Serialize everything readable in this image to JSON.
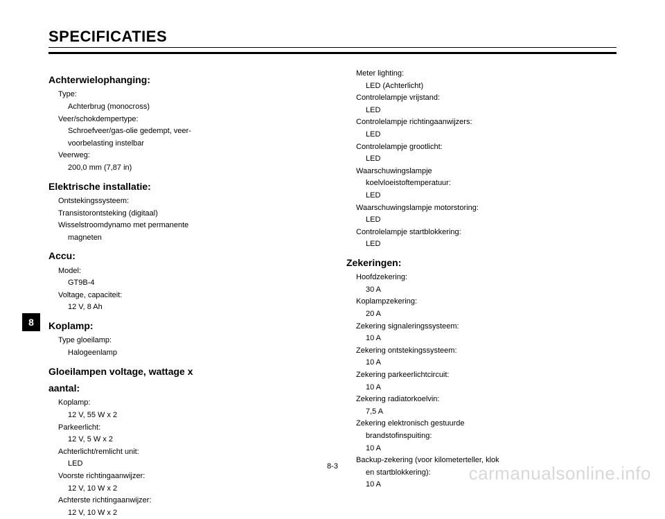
{
  "title": "SPECIFICATIES",
  "pageTab": "8",
  "pageNumber": "8-3",
  "watermark": "carmanualsonline.info",
  "col1": {
    "s1": {
      "heading": "Achterwielophanging:",
      "l1": "Type:",
      "v1": "Achterbrug (monocross)",
      "l2": "Veer/schokdempertype:",
      "v2a": "Schroefveer/gas-olie gedempt, veer-",
      "v2b": "voorbelasting instelbar",
      "l3": "Veerweg:",
      "v3": "200,0 mm (7,87 in)"
    },
    "s2": {
      "heading": "Elektrische installatie:",
      "l1": "Ontstekingssysteem:",
      "l2": "Transistorontsteking (digitaal)",
      "l3": "Wisselstroomdynamo met permanente",
      "v3": "magneten"
    },
    "s3": {
      "heading": "Accu:",
      "l1": "Model:",
      "v1": "GT9B-4",
      "l2": "Voltage, capaciteit:",
      "v2": "12 V, 8 Ah"
    },
    "s4": {
      "heading": "Koplamp:",
      "l1": "Type gloeilamp:",
      "v1": "Halogeenlamp"
    },
    "s5": {
      "heading1": "Gloeilampen voltage, wattage x",
      "heading2": "aantal:",
      "l1": "Koplamp:",
      "v1": "12 V, 55 W x 2",
      "l2": "Parkeerlicht:",
      "v2": "12 V, 5 W x 2",
      "l3": "Achterlicht/remlicht unit:",
      "v3": "LED",
      "l4": "Voorste richtingaanwijzer:",
      "v4": "12 V, 10 W x 2",
      "l5": "Achterste richtingaanwijzer:",
      "v5": "12 V, 10 W x 2"
    }
  },
  "col2": {
    "top": {
      "l1": "Meter lighting:",
      "v1": "LED (Achterlicht)",
      "l2": "Controlelampje vrijstand:",
      "v2": "LED",
      "l3": "Controlelampje richtingaanwijzers:",
      "v3": "LED",
      "l4": "Controlelampje grootlicht:",
      "v4": "LED",
      "l5a": "Waarschuwingslampje",
      "l5b": "koelvloeistoftemperatuur:",
      "v5": "LED",
      "l6": "Waarschuwingslampje motorstoring:",
      "v6": "LED",
      "l7": "Controlelampje startblokkering:",
      "v7": "LED"
    },
    "s1": {
      "heading": "Zekeringen:",
      "l1": "Hoofdzekering:",
      "v1": "30 A",
      "l2": "Koplampzekering:",
      "v2": "20 A",
      "l3": "Zekering signaleringssysteem:",
      "v3": "10 A",
      "l4": "Zekering ontstekingssysteem:",
      "v4": "10 A",
      "l5": "Zekering parkeerlichtcircuit:",
      "v5": "10 A",
      "l6": "Zekering radiatorkoelvin:",
      "v6": "7,5 A",
      "l7a": "Zekering elektronisch gestuurde",
      "l7b": "brandstofinspuiting:",
      "v7": "10 A",
      "l8a": "Backup-zekering (voor kilometerteller, klok",
      "l8b": "en startblokkering):",
      "v8": "10 A"
    }
  }
}
